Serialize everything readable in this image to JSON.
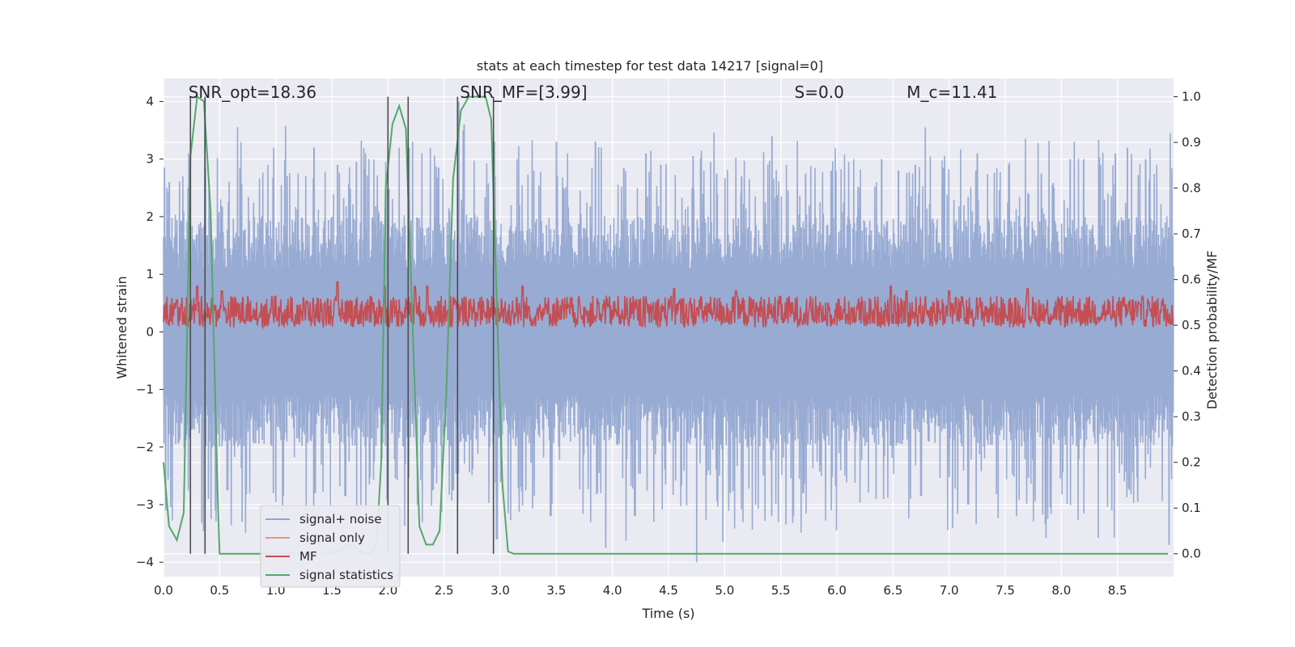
{
  "chart_data": {
    "type": "line",
    "title": "stats at each timestep for test data 14217 [signal=0]",
    "xlabel": "Time (s)",
    "ylabel": "Whitened strain",
    "ylabel_right": "Detection probability/MF",
    "xlim": [
      0,
      9
    ],
    "ylim_left": [
      -4.25,
      4.4
    ],
    "ylim_right": [
      -0.05,
      1.04
    ],
    "x_ticks": [
      0.0,
      0.5,
      1.0,
      1.5,
      2.0,
      2.5,
      3.0,
      3.5,
      4.0,
      4.5,
      5.0,
      5.5,
      6.0,
      6.5,
      7.0,
      7.5,
      8.0,
      8.5
    ],
    "x_tick_labels": [
      "0.0",
      "0.5",
      "1.0",
      "1.5",
      "2.0",
      "2.5",
      "3.0",
      "3.5",
      "4.0",
      "4.5",
      "5.0",
      "5.5",
      "6.0",
      "6.5",
      "7.0",
      "7.5",
      "8.0",
      "8.5"
    ],
    "y_left_ticks": [
      4,
      3,
      2,
      1,
      0,
      -1,
      -2,
      -3,
      -4
    ],
    "y_left_tick_labels": [
      "4",
      "3",
      "2",
      "1",
      "0",
      "−1",
      "−2",
      "−3",
      "−4"
    ],
    "y_right_ticks": [
      1.0,
      0.9,
      0.8,
      0.7,
      0.6,
      0.5,
      0.4,
      0.3,
      0.2,
      0.1,
      0.0
    ],
    "y_right_tick_labels": [
      "1.0",
      "0.9",
      "0.8",
      "0.7",
      "0.6",
      "0.5",
      "0.4",
      "0.3",
      "0.2",
      "0.1",
      "0.0"
    ],
    "grid": true,
    "legend_position": "lower-left",
    "annotations": [
      {
        "id": "snr-opt",
        "t": 0.2,
        "label": "SNR_opt=18.36"
      },
      {
        "id": "snr-mf",
        "t": 2.62,
        "label": "SNR_MF=[3.99]"
      },
      {
        "id": "s-value",
        "t": 5.6,
        "label": "S=0.0"
      },
      {
        "id": "mc-value",
        "t": 6.6,
        "label": "M_c=11.41"
      }
    ],
    "noise_band": {
      "upper_typical": 2.0,
      "lower_typical": -2.0,
      "upper_peak": 3.6,
      "lower_peak": -3.8
    },
    "series": [
      {
        "name": "signal+ noise",
        "axis": "left",
        "style": "band",
        "color": "#8fa4cf",
        "peaks": [
          [
            0.01,
            2.85
          ],
          [
            0.05,
            2.6
          ],
          [
            0.22,
            2.5
          ],
          [
            0.37,
            4.05
          ],
          [
            0.51,
            2.3
          ],
          [
            0.68,
            2.85
          ],
          [
            0.93,
            2.9
          ],
          [
            1.05,
            2.55
          ],
          [
            1.2,
            2.75
          ],
          [
            1.34,
            3.2
          ],
          [
            1.55,
            2.9
          ],
          [
            1.72,
            2.95
          ],
          [
            1.8,
            3.1
          ],
          [
            1.98,
            2.95
          ],
          [
            2.1,
            3.2
          ],
          [
            2.22,
            3.3
          ],
          [
            2.45,
            2.85
          ],
          [
            2.63,
            4.0
          ],
          [
            2.68,
            3.6
          ],
          [
            2.95,
            3.3
          ],
          [
            3.15,
            3.0
          ],
          [
            3.3,
            2.8
          ],
          [
            3.5,
            3.3
          ],
          [
            3.6,
            3.1
          ],
          [
            3.85,
            3.3
          ],
          [
            4.1,
            2.85
          ],
          [
            4.3,
            3.1
          ],
          [
            4.43,
            2.9
          ],
          [
            4.72,
            3.05
          ],
          [
            4.93,
            2.75
          ],
          [
            5.15,
            2.7
          ],
          [
            5.42,
            3.4
          ],
          [
            5.55,
            2.9
          ],
          [
            5.72,
            2.75
          ],
          [
            5.95,
            2.8
          ],
          [
            6.15,
            3.0
          ],
          [
            6.4,
            3.0
          ],
          [
            6.55,
            2.8
          ],
          [
            6.7,
            2.9
          ],
          [
            6.95,
            2.85
          ],
          [
            7.25,
            3.1
          ],
          [
            7.53,
            2.9
          ],
          [
            7.82,
            2.75
          ],
          [
            8.08,
            3.0
          ],
          [
            8.2,
            3.0
          ],
          [
            8.35,
            2.9
          ],
          [
            8.48,
            3.1
          ],
          [
            8.59,
            3.2
          ],
          [
            8.75,
            3.0
          ],
          [
            8.85,
            2.9
          ]
        ],
        "troughs": [
          [
            0.02,
            -3.1
          ],
          [
            0.4,
            -2.9
          ],
          [
            0.57,
            -2.75
          ],
          [
            0.7,
            -3.3
          ],
          [
            0.98,
            -2.8
          ],
          [
            1.35,
            -2.8
          ],
          [
            1.62,
            -2.85
          ],
          [
            2.0,
            -3.1
          ],
          [
            2.4,
            -2.75
          ],
          [
            2.58,
            -2.75
          ],
          [
            2.62,
            -2.95
          ],
          [
            2.97,
            -3.6
          ],
          [
            3.07,
            -3.15
          ],
          [
            3.45,
            -3.2
          ],
          [
            3.94,
            -3.75
          ],
          [
            4.2,
            -3.2
          ],
          [
            4.75,
            -4.0
          ],
          [
            5.05,
            -2.8
          ],
          [
            5.42,
            -3.2
          ],
          [
            5.7,
            -2.8
          ],
          [
            5.95,
            -3.1
          ],
          [
            6.35,
            -2.9
          ],
          [
            6.75,
            -2.85
          ],
          [
            7.17,
            -3.0
          ],
          [
            7.6,
            -3.2
          ],
          [
            7.9,
            -3.05
          ],
          [
            8.2,
            -3.15
          ],
          [
            8.45,
            -3.1
          ],
          [
            8.68,
            -2.95
          ],
          [
            8.96,
            -3.7
          ]
        ]
      },
      {
        "name": "signal only",
        "axis": "left",
        "style": "line",
        "color": "#e9967a",
        "points": []
      },
      {
        "name": "MF",
        "axis": "right",
        "style": "band",
        "color": "#c44e52",
        "center": 0.53,
        "half_range": 0.035,
        "peaks": [
          [
            0.3,
            0.585
          ],
          [
            0.52,
            0.575
          ],
          [
            1.55,
            0.595
          ],
          [
            1.97,
            0.585
          ],
          [
            2.24,
            0.585
          ],
          [
            2.35,
            0.585
          ],
          [
            3.2,
            0.585
          ],
          [
            4.55,
            0.58
          ],
          [
            5.1,
            0.575
          ],
          [
            6.48,
            0.585
          ],
          [
            6.62,
            0.575
          ],
          [
            7.0,
            0.575
          ],
          [
            7.7,
            0.58
          ]
        ],
        "baseline": 0.5
      },
      {
        "name": "signal statistics",
        "axis": "right",
        "style": "line",
        "color": "#55a868",
        "points": [
          [
            0.0,
            0.2
          ],
          [
            0.05,
            0.06
          ],
          [
            0.12,
            0.03
          ],
          [
            0.18,
            0.09
          ],
          [
            0.24,
            0.87
          ],
          [
            0.3,
            1.0
          ],
          [
            0.36,
            0.99
          ],
          [
            0.42,
            0.75
          ],
          [
            0.48,
            0.15
          ],
          [
            0.5,
            0.0
          ],
          [
            0.6,
            0.0
          ],
          [
            0.8,
            0.0
          ],
          [
            1.0,
            0.0
          ],
          [
            1.2,
            0.0
          ],
          [
            1.4,
            0.0
          ],
          [
            1.55,
            0.005
          ],
          [
            1.65,
            0.02
          ],
          [
            1.7,
            0.015
          ],
          [
            1.75,
            0.005
          ],
          [
            1.85,
            0.0
          ],
          [
            1.9,
            0.03
          ],
          [
            1.94,
            0.2
          ],
          [
            1.98,
            0.8
          ],
          [
            2.04,
            0.94
          ],
          [
            2.1,
            0.98
          ],
          [
            2.16,
            0.93
          ],
          [
            2.22,
            0.5
          ],
          [
            2.28,
            0.06
          ],
          [
            2.34,
            0.02
          ],
          [
            2.4,
            0.02
          ],
          [
            2.46,
            0.05
          ],
          [
            2.52,
            0.35
          ],
          [
            2.58,
            0.82
          ],
          [
            2.65,
            0.97
          ],
          [
            2.72,
            1.0
          ],
          [
            2.8,
            1.0
          ],
          [
            2.87,
            1.0
          ],
          [
            2.92,
            0.95
          ],
          [
            2.97,
            0.55
          ],
          [
            3.02,
            0.15
          ],
          [
            3.07,
            0.005
          ],
          [
            3.12,
            0.0
          ],
          [
            3.5,
            0.0
          ],
          [
            4.0,
            0.0
          ],
          [
            5.0,
            0.0
          ],
          [
            6.0,
            0.0
          ],
          [
            7.0,
            0.0
          ],
          [
            8.0,
            0.0
          ],
          [
            8.95,
            0.0
          ]
        ]
      }
    ],
    "vertical_markers": [
      0.24,
      0.37,
      2.0,
      2.18,
      2.62,
      2.94
    ]
  }
}
